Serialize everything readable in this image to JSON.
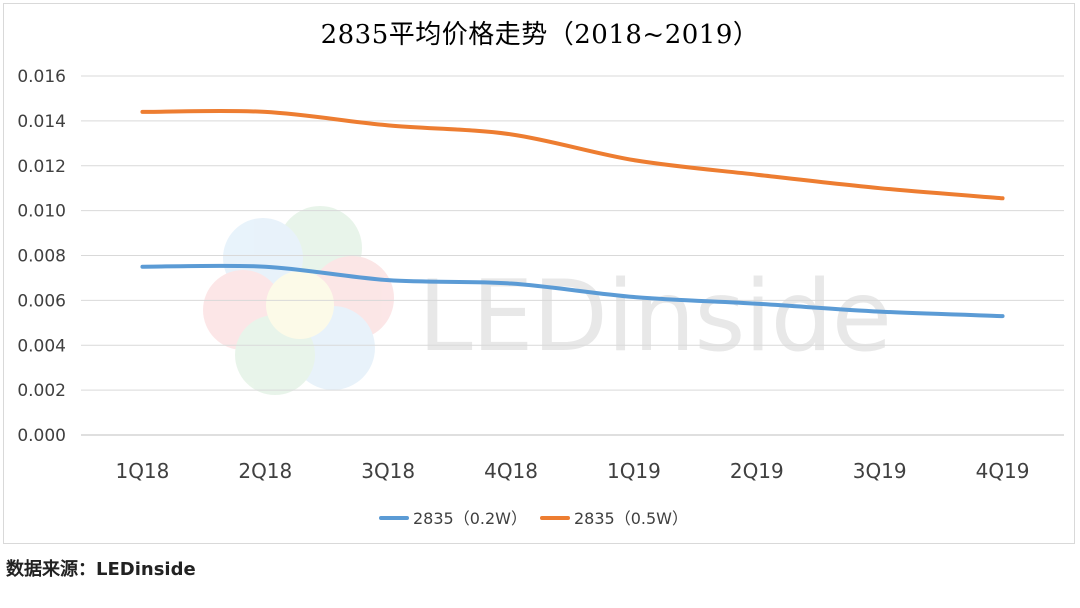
{
  "chart_data": {
    "type": "line",
    "title": "2835平均价格走势（2018~2019）",
    "categories": [
      "1Q18",
      "2Q18",
      "3Q18",
      "4Q18",
      "1Q19",
      "2Q19",
      "3Q19",
      "4Q19"
    ],
    "yticks": [
      "0.000",
      "0.002",
      "0.004",
      "0.006",
      "0.008",
      "0.010",
      "0.012",
      "0.014",
      "0.016"
    ],
    "ylim": [
      0,
      0.016
    ],
    "grid": true,
    "legend_position": "bottom",
    "series": [
      {
        "name": "2835（0.2W）",
        "color": "#5b9bd5",
        "values": [
          0.0075,
          0.0075,
          0.0069,
          0.00675,
          0.00615,
          0.00585,
          0.0055,
          0.0053
        ]
      },
      {
        "name": "2835（0.5W）",
        "color": "#ed7d31",
        "values": [
          0.0144,
          0.0144,
          0.0138,
          0.0134,
          0.01225,
          0.0116,
          0.011,
          0.01055
        ]
      }
    ]
  },
  "watermark": {
    "text": "LEDinside"
  },
  "source": "数据来源：LEDinside"
}
